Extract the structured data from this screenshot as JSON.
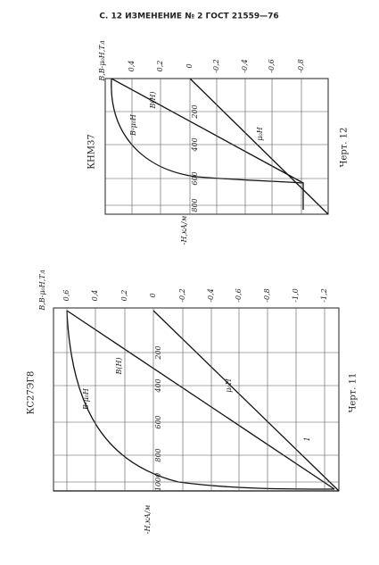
{
  "header": "С. 12 ИЗМЕНЕНИЕ № 2 ГОСТ 21559—76",
  "figure_12": {
    "title": "КНМ37",
    "caption": "Черт. 12",
    "value_axis_label": "В,В-μ₀Н,Тл",
    "value_ticks": [
      "0,4",
      "0,2",
      "0",
      "-0,2",
      "-0,4",
      "-0,6",
      "-0,8"
    ],
    "h_axis_label": "-Н,кА/м",
    "h_ticks": [
      "200",
      "400",
      "600",
      "800"
    ],
    "curve_labels": [
      "В(Н)",
      "В-μ₀Н",
      "μ₀Н"
    ]
  },
  "figure_11": {
    "title": "КС27ЭГ8",
    "caption": "Черт. 11",
    "value_axis_label": "В,В-μ₀Н,Тл",
    "value_ticks": [
      "0,6",
      "0,4",
      "0,2",
      "0",
      "-0,2",
      "-0,4",
      "-0,6",
      "-0,8",
      "-1,0",
      "-1,2"
    ],
    "h_axis_label": "-Н,кА/м",
    "h_ticks": [
      "200",
      "400",
      "600",
      "800",
      "1000"
    ],
    "curve_labels": [
      "В(Н)",
      "В-μ₀Н",
      "μ₀Н",
      "1"
    ]
  }
}
